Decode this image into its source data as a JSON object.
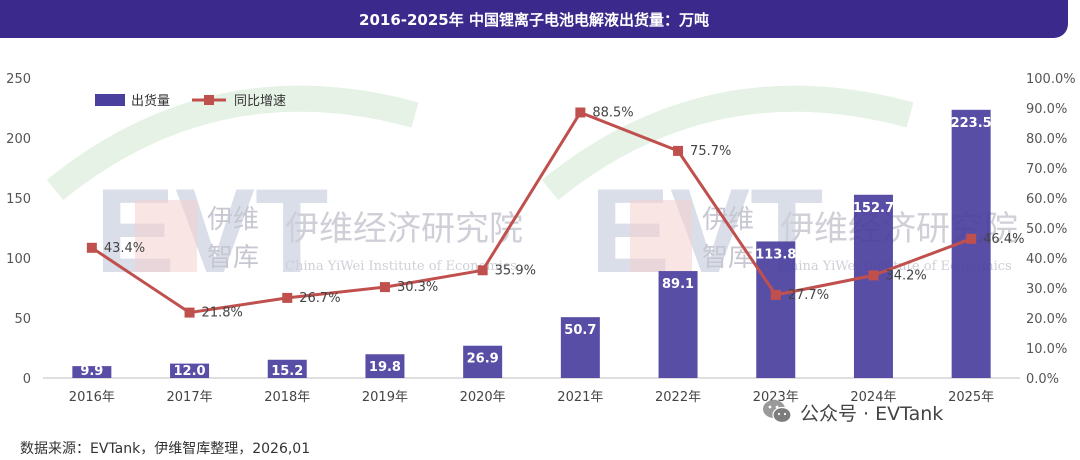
{
  "header": {
    "title": "2016-2025年 中国锂离子电池电解液出货量：万吨"
  },
  "footer": {
    "source": "数据来源：EVTank，伊维智库整理，2026,01"
  },
  "brand": {
    "text": "公众号 · EVTank",
    "icon": "wechat-icon"
  },
  "watermarks": [
    {
      "mark": "EVT",
      "cn": "伊维经济研究院",
      "cn_logo": "伊维智库",
      "en": "China YiWei Institute of Economics"
    },
    {
      "mark": "EVT",
      "cn": "伊维经济研究院",
      "cn_logo": "伊维智库",
      "en": "China YiWei Institute of Economics"
    }
  ],
  "colors": {
    "bar": "#4b3f9e",
    "line": "#c0504d",
    "title_bg": "#3b2a8c"
  },
  "chart_data": {
    "type": "bar",
    "categories": [
      "2016年",
      "2017年",
      "2018年",
      "2019年",
      "2020年",
      "2021年",
      "2022年",
      "2023年",
      "2024年",
      "2025年"
    ],
    "series": [
      {
        "name": "出货量",
        "type": "bar",
        "axis": "left",
        "values": [
          9.9,
          12.0,
          15.2,
          19.8,
          26.9,
          50.7,
          89.1,
          113.8,
          152.7,
          223.5
        ],
        "labels": [
          "9.9",
          "12.0",
          "15.2",
          "19.8",
          "26.9",
          "50.7",
          "89.1",
          "113.8",
          "152.7",
          "223.5"
        ]
      },
      {
        "name": "同比增速",
        "type": "line",
        "axis": "right",
        "values": [
          43.4,
          21.8,
          26.7,
          30.3,
          35.9,
          88.5,
          75.7,
          27.7,
          34.2,
          46.4
        ],
        "labels": [
          "43.4%",
          "21.8%",
          "26.7%",
          "30.3%",
          "35.9%",
          "88.5%",
          "75.7%",
          "27.7%",
          "34.2%",
          "46.4%"
        ]
      }
    ],
    "y_left": {
      "min": 0,
      "max": 250,
      "ticks": [
        "0",
        "50",
        "100",
        "150",
        "200",
        "250"
      ]
    },
    "y_right": {
      "min": 0,
      "max": 100,
      "ticks": [
        "0.0%",
        "10.0%",
        "20.0%",
        "30.0%",
        "40.0%",
        "50.0%",
        "60.0%",
        "70.0%",
        "80.0%",
        "90.0%",
        "100.0%"
      ]
    },
    "legend": {
      "position": "top-left"
    },
    "grid": false
  }
}
